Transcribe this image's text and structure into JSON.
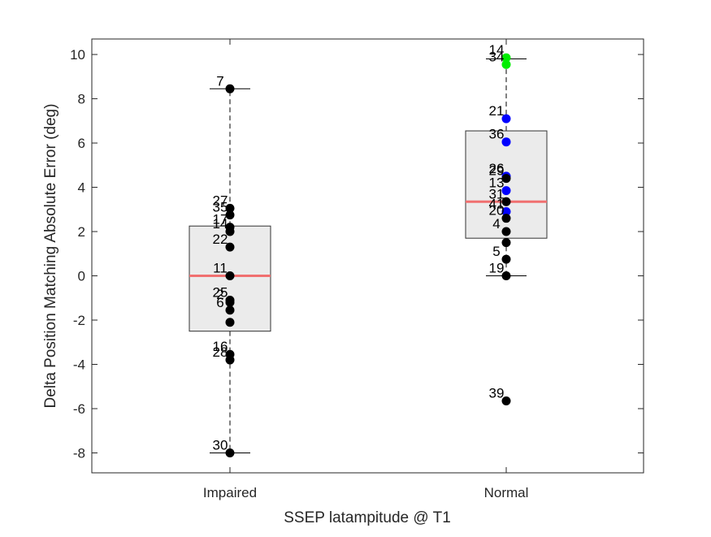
{
  "chart_data": {
    "type": "box",
    "xlabel": "SSEP latampitude @ T1",
    "ylabel": "Delta Position Matching Absolute Error (deg)",
    "ylim": [
      -8.9,
      10.7
    ],
    "yticks": [
      -8,
      -6,
      -4,
      -2,
      0,
      2,
      4,
      6,
      8,
      10
    ],
    "categories": [
      "Impaired",
      "Normal"
    ],
    "colors": {
      "box_fill": "#ebebeb",
      "box_edge": "#333333",
      "median": "#f07070",
      "point_default": "#000000",
      "point_blue": "#0000ff",
      "point_green": "#00ee00"
    },
    "groups": [
      {
        "name": "Impaired",
        "q1": -2.5,
        "median": 0.0,
        "q3": 2.25,
        "whisker_low": -8.0,
        "whisker_high": 8.45,
        "points": [
          {
            "label": "7",
            "y": 8.45,
            "color": "black"
          },
          {
            "label": "27",
            "y": 3.05,
            "color": "black"
          },
          {
            "label": "35",
            "y": 2.75,
            "color": "black"
          },
          {
            "label": "17",
            "y": 2.2,
            "color": "black"
          },
          {
            "label": "14",
            "y": 2.0,
            "color": "black"
          },
          {
            "label": "22",
            "y": 1.3,
            "color": "black"
          },
          {
            "label": "11",
            "y": 0.0,
            "color": "black"
          },
          {
            "label": "25",
            "y": -1.1,
            "color": "black"
          },
          {
            "label": "2",
            "y": -1.2,
            "color": "black"
          },
          {
            "label": "6",
            "y": -1.55,
            "color": "black"
          },
          {
            "label": "",
            "y": -2.1,
            "color": "black"
          },
          {
            "label": "16",
            "y": -3.55,
            "color": "black"
          },
          {
            "label": "28",
            "y": -3.8,
            "color": "black"
          },
          {
            "label": "30",
            "y": -8.0,
            "color": "black"
          }
        ]
      },
      {
        "name": "Normal",
        "q1": 1.7,
        "median": 3.35,
        "q3": 6.55,
        "whisker_low": 0.0,
        "whisker_high": 9.8,
        "points": [
          {
            "label": "14",
            "y": 9.85,
            "color": "green"
          },
          {
            "label": "34",
            "y": 9.55,
            "color": "green"
          },
          {
            "label": "21",
            "y": 7.1,
            "color": "blue"
          },
          {
            "label": "36",
            "y": 6.05,
            "color": "blue"
          },
          {
            "label": "26",
            "y": 4.5,
            "color": "blue"
          },
          {
            "label": "29",
            "y": 4.4,
            "color": "black"
          },
          {
            "label": "13",
            "y": 3.85,
            "color": "blue"
          },
          {
            "label": "31",
            "y": 3.35,
            "color": "black"
          },
          {
            "label": "41",
            "y": 2.9,
            "color": "blue"
          },
          {
            "label": "20",
            "y": 2.6,
            "color": "black"
          },
          {
            "label": "4",
            "y": 2.0,
            "color": "black"
          },
          {
            "label": "",
            "y": 1.5,
            "color": "black"
          },
          {
            "label": "5",
            "y": 0.75,
            "color": "black"
          },
          {
            "label": "19",
            "y": 0.0,
            "color": "black"
          },
          {
            "label": "39",
            "y": -5.65,
            "color": "black"
          }
        ]
      }
    ]
  }
}
